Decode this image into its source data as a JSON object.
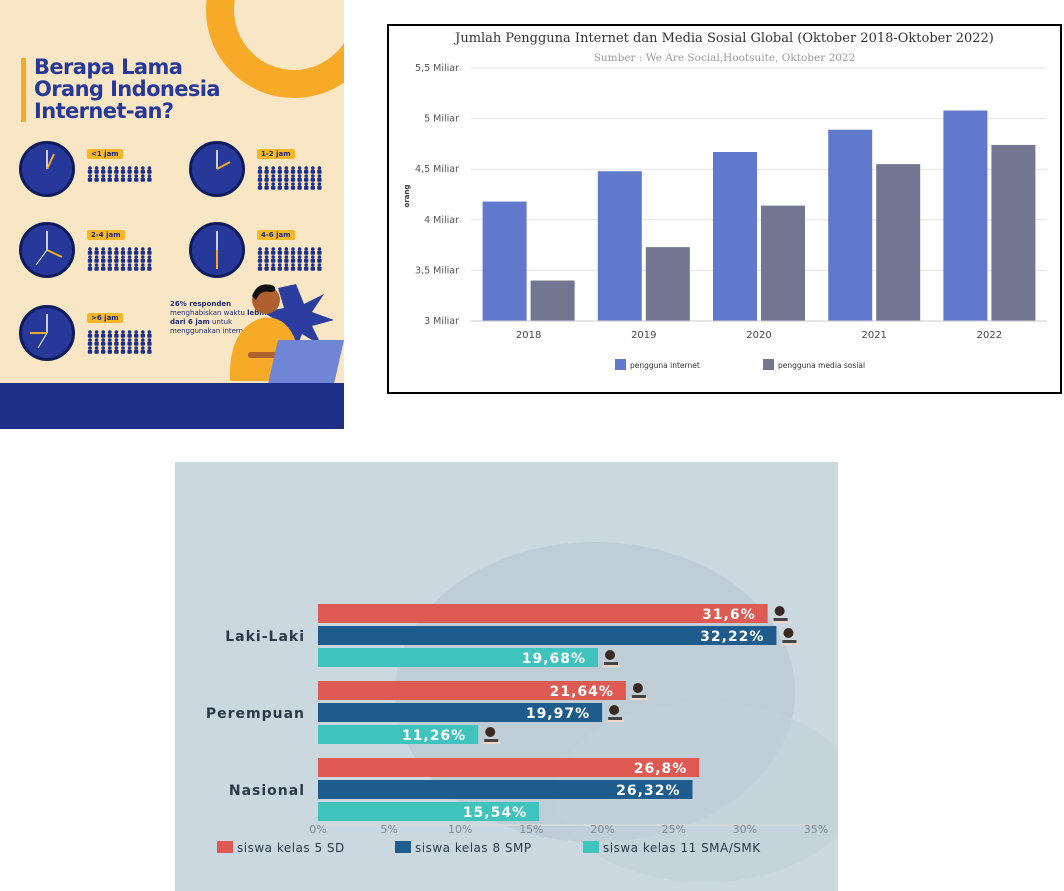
{
  "infographic": {
    "title_lines": [
      "Berapa Lama",
      "Orang Indonesia",
      "Internet-an?"
    ],
    "clocks": [
      {
        "label": "<1 jam"
      },
      {
        "label": "1-2 jam"
      },
      {
        "label": "2-4 jam"
      },
      {
        "label": "4-6 jam"
      },
      {
        "label": ">6 jam"
      }
    ],
    "note_parts": [
      "26% responden",
      "menghabiskan waktu ",
      "lebih dari 6 jam",
      " untuk menggunakan internet"
    ],
    "colors": {
      "background": "#f9e6c4",
      "navy": "#26389a",
      "accent": "#f7a928"
    }
  },
  "chart_data": [
    {
      "type": "bar",
      "title": "Jumlah Pengguna Internet dan Media Sosial Global (Oktober 2018-Oktober 2022)",
      "subtitle": "Sumber : We Are Social,Hootsuite, Oktober 2022",
      "ylabel": "orang",
      "categories": [
        "2018",
        "2019",
        "2020",
        "2021",
        "2022"
      ],
      "ylim": [
        3,
        5.5
      ],
      "y_ticks": [
        3,
        3.5,
        4,
        4.5,
        5,
        5.5
      ],
      "y_tick_labels": [
        "3 Miliar",
        "3,5 Miliar",
        "4 Miliar",
        "4,5 Miliar",
        "5 Miliar",
        "5,5 Miliar"
      ],
      "series": [
        {
          "name": "pengguna internet",
          "values": [
            4.18,
            4.48,
            4.67,
            4.89,
            5.08
          ],
          "color": "#6079cc"
        },
        {
          "name": "pengguna media sosial",
          "values": [
            3.4,
            3.73,
            4.14,
            4.55,
            4.74
          ],
          "color": "#737691"
        }
      ],
      "grid": true,
      "legend": "bottom"
    },
    {
      "type": "bar",
      "orientation": "horizontal",
      "categories": [
        "Laki-Laki",
        "Perempuan",
        "Nasional"
      ],
      "series": [
        {
          "name": "siswa kelas 5 SD",
          "values": [
            31.6,
            21.64,
            26.8
          ],
          "labels": [
            "31,6%",
            "21,64%",
            "26,8%"
          ],
          "color": "#df5a52"
        },
        {
          "name": "siswa kelas 8 SMP",
          "values": [
            32.22,
            19.97,
            26.32
          ],
          "labels": [
            "32,22%",
            "19,97%",
            "26,32%"
          ],
          "color": "#1f5c8e"
        },
        {
          "name": "siswa kelas 11 SMA/SMK",
          "values": [
            19.68,
            11.26,
            15.54
          ],
          "labels": [
            "19,68%",
            "11,26%",
            "15,54%"
          ],
          "color": "#3fc4bd"
        }
      ],
      "xlim": [
        0,
        35
      ],
      "x_ticks": [
        0,
        5,
        10,
        15,
        20,
        25,
        30,
        35
      ],
      "x_tick_labels": [
        "0%",
        "5%",
        "10%",
        "15%",
        "20%",
        "25%",
        "30%",
        "35%"
      ],
      "legend": "bottom"
    }
  ]
}
